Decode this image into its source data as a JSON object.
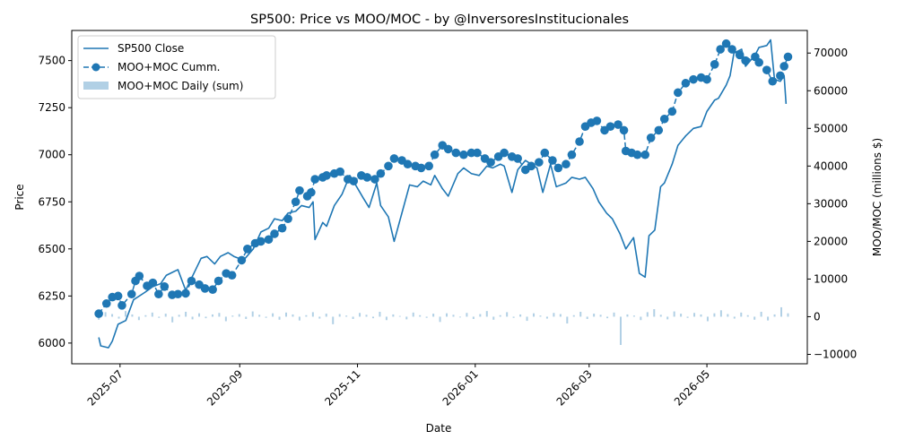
{
  "chart_data": {
    "type": "line",
    "title": "SP500: Price vs MOO/MOC   -   by @InversoresInstitucionales",
    "xlabel": "Date",
    "ylabel_left": "Price",
    "ylabel_right": "MOO/MOC (millions $)",
    "x_range": [
      "2025-06-06",
      "2026-06-22"
    ],
    "ylim_left": [
      5890,
      7660
    ],
    "ylim_right": [
      -12500,
      76000
    ],
    "x_ticks": [
      "2025-07",
      "2025-09",
      "2025-11",
      "2026-01",
      "2026-03",
      "2026-05"
    ],
    "x_tick_dates": [
      "2025-07-01",
      "2025-09-01",
      "2025-11-01",
      "2026-01-01",
      "2026-03-01",
      "2026-05-01"
    ],
    "y_ticks_left": [
      6000,
      6250,
      6500,
      6750,
      7000,
      7250,
      7500
    ],
    "y_ticks_right": [
      -10000,
      0,
      10000,
      20000,
      30000,
      40000,
      50000,
      60000,
      70000
    ],
    "legend_position": "upper-left",
    "series": [
      {
        "name": "SP500 Close",
        "axis": "left",
        "color": "#1f77b4",
        "points": [
          [
            "2025-06-20",
            6030
          ],
          [
            "2025-06-21",
            5985
          ],
          [
            "2025-06-25",
            5975
          ],
          [
            "2025-06-27",
            6010
          ],
          [
            "2025-06-30",
            6100
          ],
          [
            "2025-07-04",
            6120
          ],
          [
            "2025-07-08",
            6230
          ],
          [
            "2025-07-14",
            6270
          ],
          [
            "2025-07-18",
            6300
          ],
          [
            "2025-07-22",
            6315
          ],
          [
            "2025-07-25",
            6360
          ],
          [
            "2025-07-29",
            6380
          ],
          [
            "2025-07-31",
            6390
          ],
          [
            "2025-08-04",
            6280
          ],
          [
            "2025-08-08",
            6365
          ],
          [
            "2025-08-12",
            6450
          ],
          [
            "2025-08-15",
            6460
          ],
          [
            "2025-08-19",
            6420
          ],
          [
            "2025-08-22",
            6460
          ],
          [
            "2025-08-26",
            6480
          ],
          [
            "2025-08-29",
            6460
          ],
          [
            "2025-09-03",
            6440
          ],
          [
            "2025-09-08",
            6500
          ],
          [
            "2025-09-12",
            6590
          ],
          [
            "2025-09-16",
            6610
          ],
          [
            "2025-09-19",
            6660
          ],
          [
            "2025-09-23",
            6650
          ],
          [
            "2025-09-26",
            6690
          ],
          [
            "2025-09-30",
            6700
          ],
          [
            "2025-10-03",
            6730
          ],
          [
            "2025-10-07",
            6720
          ],
          [
            "2025-10-09",
            6750
          ],
          [
            "2025-10-10",
            6550
          ],
          [
            "2025-10-14",
            6640
          ],
          [
            "2025-10-16",
            6620
          ],
          [
            "2025-10-20",
            6730
          ],
          [
            "2025-10-24",
            6790
          ],
          [
            "2025-10-28",
            6890
          ],
          [
            "2025-10-31",
            6840
          ],
          [
            "2025-11-04",
            6770
          ],
          [
            "2025-11-07",
            6720
          ],
          [
            "2025-11-11",
            6850
          ],
          [
            "2025-11-13",
            6730
          ],
          [
            "2025-11-17",
            6670
          ],
          [
            "2025-11-20",
            6540
          ],
          [
            "2025-11-24",
            6690
          ],
          [
            "2025-11-28",
            6840
          ],
          [
            "2025-12-02",
            6830
          ],
          [
            "2025-12-05",
            6860
          ],
          [
            "2025-12-09",
            6840
          ],
          [
            "2025-12-11",
            6890
          ],
          [
            "2025-12-15",
            6820
          ],
          [
            "2025-12-18",
            6780
          ],
          [
            "2025-12-23",
            6900
          ],
          [
            "2025-12-26",
            6930
          ],
          [
            "2025-12-30",
            6900
          ],
          [
            "2026-01-03",
            6890
          ],
          [
            "2026-01-07",
            6940
          ],
          [
            "2026-01-10",
            6930
          ],
          [
            "2026-01-14",
            6950
          ],
          [
            "2026-01-16",
            6940
          ],
          [
            "2026-01-20",
            6800
          ],
          [
            "2026-01-23",
            6920
          ],
          [
            "2026-01-27",
            6970
          ],
          [
            "2026-02-02",
            6930
          ],
          [
            "2026-02-05",
            6800
          ],
          [
            "2026-02-09",
            6950
          ],
          [
            "2026-02-12",
            6830
          ],
          [
            "2026-02-17",
            6850
          ],
          [
            "2026-02-20",
            6880
          ],
          [
            "2026-02-24",
            6870
          ],
          [
            "2026-02-27",
            6880
          ],
          [
            "2026-03-03",
            6820
          ],
          [
            "2026-03-06",
            6750
          ],
          [
            "2026-03-10",
            6690
          ],
          [
            "2026-03-13",
            6660
          ],
          [
            "2026-03-17",
            6580
          ],
          [
            "2026-03-20",
            6500
          ],
          [
            "2026-03-24",
            6560
          ],
          [
            "2026-03-27",
            6370
          ],
          [
            "2026-03-30",
            6350
          ],
          [
            "2026-04-01",
            6570
          ],
          [
            "2026-04-04",
            6600
          ],
          [
            "2026-04-07",
            6830
          ],
          [
            "2026-04-09",
            6850
          ],
          [
            "2026-04-13",
            6950
          ],
          [
            "2026-04-16",
            7050
          ],
          [
            "2026-04-20",
            7100
          ],
          [
            "2026-04-24",
            7140
          ],
          [
            "2026-04-28",
            7150
          ],
          [
            "2026-05-01",
            7230
          ],
          [
            "2026-05-05",
            7290
          ],
          [
            "2026-05-07",
            7300
          ],
          [
            "2026-05-11",
            7370
          ],
          [
            "2026-05-13",
            7420
          ],
          [
            "2026-05-15",
            7540
          ],
          [
            "2026-05-19",
            7560
          ],
          [
            "2026-05-21",
            7470
          ],
          [
            "2026-05-26",
            7530
          ],
          [
            "2026-05-28",
            7570
          ],
          [
            "2026-06-01",
            7580
          ],
          [
            "2026-06-03",
            7610
          ],
          [
            "2026-06-05",
            7400
          ],
          [
            "2026-06-08",
            7390
          ],
          [
            "2026-06-10",
            7420
          ],
          [
            "2026-06-11",
            7270
          ]
        ]
      },
      {
        "name": "MOO+MOC Cumm.",
        "axis": "right",
        "color": "#1f77b4",
        "marker": "circle",
        "linestyle": "dashed",
        "points": [
          [
            "2025-06-20",
            800
          ],
          [
            "2025-06-24",
            3500
          ],
          [
            "2025-06-27",
            5200
          ],
          [
            "2025-06-30",
            5500
          ],
          [
            "2025-07-02",
            3000
          ],
          [
            "2025-07-07",
            6000
          ],
          [
            "2025-07-09",
            9500
          ],
          [
            "2025-07-11",
            10800
          ],
          [
            "2025-07-15",
            8200
          ],
          [
            "2025-07-18",
            9000
          ],
          [
            "2025-07-21",
            6000
          ],
          [
            "2025-07-24",
            8000
          ],
          [
            "2025-07-28",
            5800
          ],
          [
            "2025-07-31",
            6000
          ],
          [
            "2025-08-04",
            6200
          ],
          [
            "2025-08-07",
            9500
          ],
          [
            "2025-08-11",
            8500
          ],
          [
            "2025-08-14",
            7500
          ],
          [
            "2025-08-18",
            7200
          ],
          [
            "2025-08-21",
            9500
          ],
          [
            "2025-08-25",
            11500
          ],
          [
            "2025-08-28",
            11000
          ],
          [
            "2025-09-02",
            15000
          ],
          [
            "2025-09-05",
            18000
          ],
          [
            "2025-09-09",
            19500
          ],
          [
            "2025-09-12",
            20000
          ],
          [
            "2025-09-16",
            20500
          ],
          [
            "2025-09-19",
            22000
          ],
          [
            "2025-09-23",
            23500
          ],
          [
            "2025-09-26",
            26000
          ],
          [
            "2025-09-30",
            30500
          ],
          [
            "2025-10-02",
            33500
          ],
          [
            "2025-10-06",
            32000
          ],
          [
            "2025-10-08",
            33000
          ],
          [
            "2025-10-10",
            36500
          ],
          [
            "2025-10-14",
            37000
          ],
          [
            "2025-10-16",
            37500
          ],
          [
            "2025-10-20",
            38000
          ],
          [
            "2025-10-23",
            38500
          ],
          [
            "2025-10-27",
            36500
          ],
          [
            "2025-10-30",
            36000
          ],
          [
            "2025-11-03",
            37500
          ],
          [
            "2025-11-06",
            37000
          ],
          [
            "2025-11-10",
            36500
          ],
          [
            "2025-11-13",
            38000
          ],
          [
            "2025-11-17",
            40000
          ],
          [
            "2025-11-20",
            42000
          ],
          [
            "2025-11-24",
            41500
          ],
          [
            "2025-11-27",
            40500
          ],
          [
            "2025-12-01",
            40000
          ],
          [
            "2025-12-04",
            39500
          ],
          [
            "2025-12-08",
            40000
          ],
          [
            "2025-12-11",
            43000
          ],
          [
            "2025-12-15",
            45500
          ],
          [
            "2025-12-18",
            44500
          ],
          [
            "2025-12-22",
            43500
          ],
          [
            "2025-12-26",
            43000
          ],
          [
            "2025-12-30",
            43500
          ],
          [
            "2026-01-02",
            43500
          ],
          [
            "2026-01-06",
            42000
          ],
          [
            "2026-01-09",
            41000
          ],
          [
            "2026-01-13",
            42500
          ],
          [
            "2026-01-16",
            43500
          ],
          [
            "2026-01-20",
            42500
          ],
          [
            "2026-01-23",
            42000
          ],
          [
            "2026-01-27",
            39000
          ],
          [
            "2026-01-30",
            40000
          ],
          [
            "2026-02-03",
            41000
          ],
          [
            "2026-02-06",
            43500
          ],
          [
            "2026-02-10",
            41500
          ],
          [
            "2026-02-13",
            39500
          ],
          [
            "2026-02-17",
            40500
          ],
          [
            "2026-02-20",
            43000
          ],
          [
            "2026-02-24",
            46500
          ],
          [
            "2026-02-27",
            50500
          ],
          [
            "2026-03-02",
            51500
          ],
          [
            "2026-03-05",
            52000
          ],
          [
            "2026-03-09",
            49500
          ],
          [
            "2026-03-12",
            50500
          ],
          [
            "2026-03-16",
            51000
          ],
          [
            "2026-03-19",
            49500
          ],
          [
            "2026-03-20",
            44000
          ],
          [
            "2026-03-23",
            43500
          ],
          [
            "2026-03-26",
            43000
          ],
          [
            "2026-03-30",
            43000
          ],
          [
            "2026-04-02",
            47500
          ],
          [
            "2026-04-06",
            49500
          ],
          [
            "2026-04-09",
            52500
          ],
          [
            "2026-04-13",
            54500
          ],
          [
            "2026-04-16",
            59500
          ],
          [
            "2026-04-20",
            62000
          ],
          [
            "2026-04-24",
            63000
          ],
          [
            "2026-04-28",
            63500
          ],
          [
            "2026-05-01",
            63000
          ],
          [
            "2026-05-05",
            67000
          ],
          [
            "2026-05-08",
            71000
          ],
          [
            "2026-05-11",
            72500
          ],
          [
            "2026-05-14",
            71000
          ],
          [
            "2026-05-18",
            69500
          ],
          [
            "2026-05-21",
            68000
          ],
          [
            "2026-05-26",
            69000
          ],
          [
            "2026-05-28",
            67500
          ],
          [
            "2026-06-01",
            65500
          ],
          [
            "2026-06-04",
            62500
          ],
          [
            "2026-06-08",
            64000
          ],
          [
            "2026-06-10",
            66500
          ],
          [
            "2026-06-12",
            69000
          ]
        ]
      },
      {
        "name": "MOO+MOC Daily (sum)",
        "axis": "right",
        "color": "#1f77b4",
        "opacity": 0.35,
        "type": "bar",
        "values": [
          -800,
          1200,
          700,
          -500,
          1500,
          600,
          -900,
          400,
          1100,
          -300,
          800,
          -1500,
          500,
          1300,
          -700,
          900,
          -400,
          600,
          1000,
          -1200,
          300,
          700,
          -600,
          1400,
          500,
          -300,
          900,
          -800,
          1100,
          600,
          -1000,
          400,
          1200,
          -500,
          800,
          -2000,
          700,
          300,
          -600,
          1000,
          500,
          -400,
          1300,
          -900,
          600,
          200,
          -700,
          1100,
          400,
          -300,
          800,
          -1400,
          900,
          500,
          -200,
          1000,
          -600,
          700,
          1500,
          -800,
          400,
          1200,
          -300,
          600,
          -1100,
          900,
          300,
          -500,
          1000,
          700,
          -1800,
          400,
          1300,
          -600,
          800,
          500,
          -400,
          1100,
          -7500,
          600,
          300,
          -900,
          1200,
          2000,
          500,
          -700,
          1400,
          800,
          -300,
          1000,
          600,
          -1200,
          900,
          1700,
          700,
          -500,
          1100,
          400,
          -800,
          1300,
          -1000,
          600,
          2500,
          900
        ]
      }
    ]
  }
}
